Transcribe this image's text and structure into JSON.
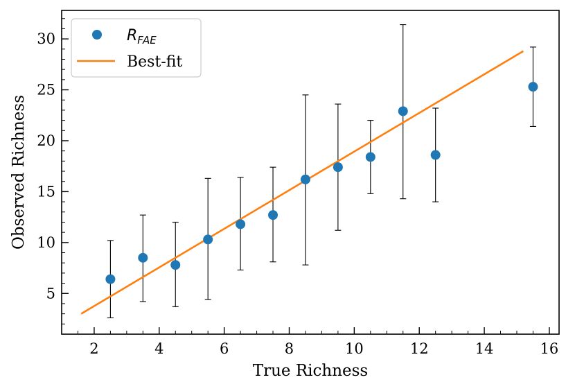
{
  "chart_data": {
    "type": "scatter",
    "xlabel": "True Richness",
    "ylabel": "Observed Richness",
    "xlim": [
      1.0,
      16.3
    ],
    "ylim": [
      1.0,
      32.8
    ],
    "xticks": [
      2,
      4,
      6,
      8,
      10,
      12,
      14,
      16
    ],
    "yticks": [
      5,
      10,
      15,
      20,
      25,
      30
    ],
    "grid": false,
    "legend_position": "top-left",
    "series": [
      {
        "name_main": "R",
        "name_sub": "FAE",
        "kind": "scatter-errorbar",
        "color": "#1f77b4",
        "points": [
          {
            "x": 2.5,
            "y": 6.4,
            "ylo": 2.6,
            "yhi": 10.2
          },
          {
            "x": 3.5,
            "y": 8.5,
            "ylo": 4.2,
            "yhi": 12.7
          },
          {
            "x": 4.5,
            "y": 7.8,
            "ylo": 3.7,
            "yhi": 12.0
          },
          {
            "x": 5.5,
            "y": 10.3,
            "ylo": 4.4,
            "yhi": 16.3
          },
          {
            "x": 6.5,
            "y": 11.8,
            "ylo": 7.3,
            "yhi": 16.4
          },
          {
            "x": 7.5,
            "y": 12.7,
            "ylo": 8.1,
            "yhi": 17.4
          },
          {
            "x": 8.5,
            "y": 16.2,
            "ylo": 7.8,
            "yhi": 24.5
          },
          {
            "x": 9.5,
            "y": 17.4,
            "ylo": 11.2,
            "yhi": 23.6
          },
          {
            "x": 10.5,
            "y": 18.4,
            "ylo": 14.8,
            "yhi": 22.0
          },
          {
            "x": 11.5,
            "y": 22.9,
            "ylo": 14.3,
            "yhi": 31.4
          },
          {
            "x": 12.5,
            "y": 18.6,
            "ylo": 14.0,
            "yhi": 23.2
          },
          {
            "x": 15.5,
            "y": 25.3,
            "ylo": 21.4,
            "yhi": 29.2
          }
        ]
      },
      {
        "name": "Best-fit",
        "kind": "line",
        "color": "#ff7f0e",
        "points": [
          {
            "x": 1.6,
            "y": 3.0
          },
          {
            "x": 15.2,
            "y": 28.8
          }
        ]
      }
    ]
  }
}
